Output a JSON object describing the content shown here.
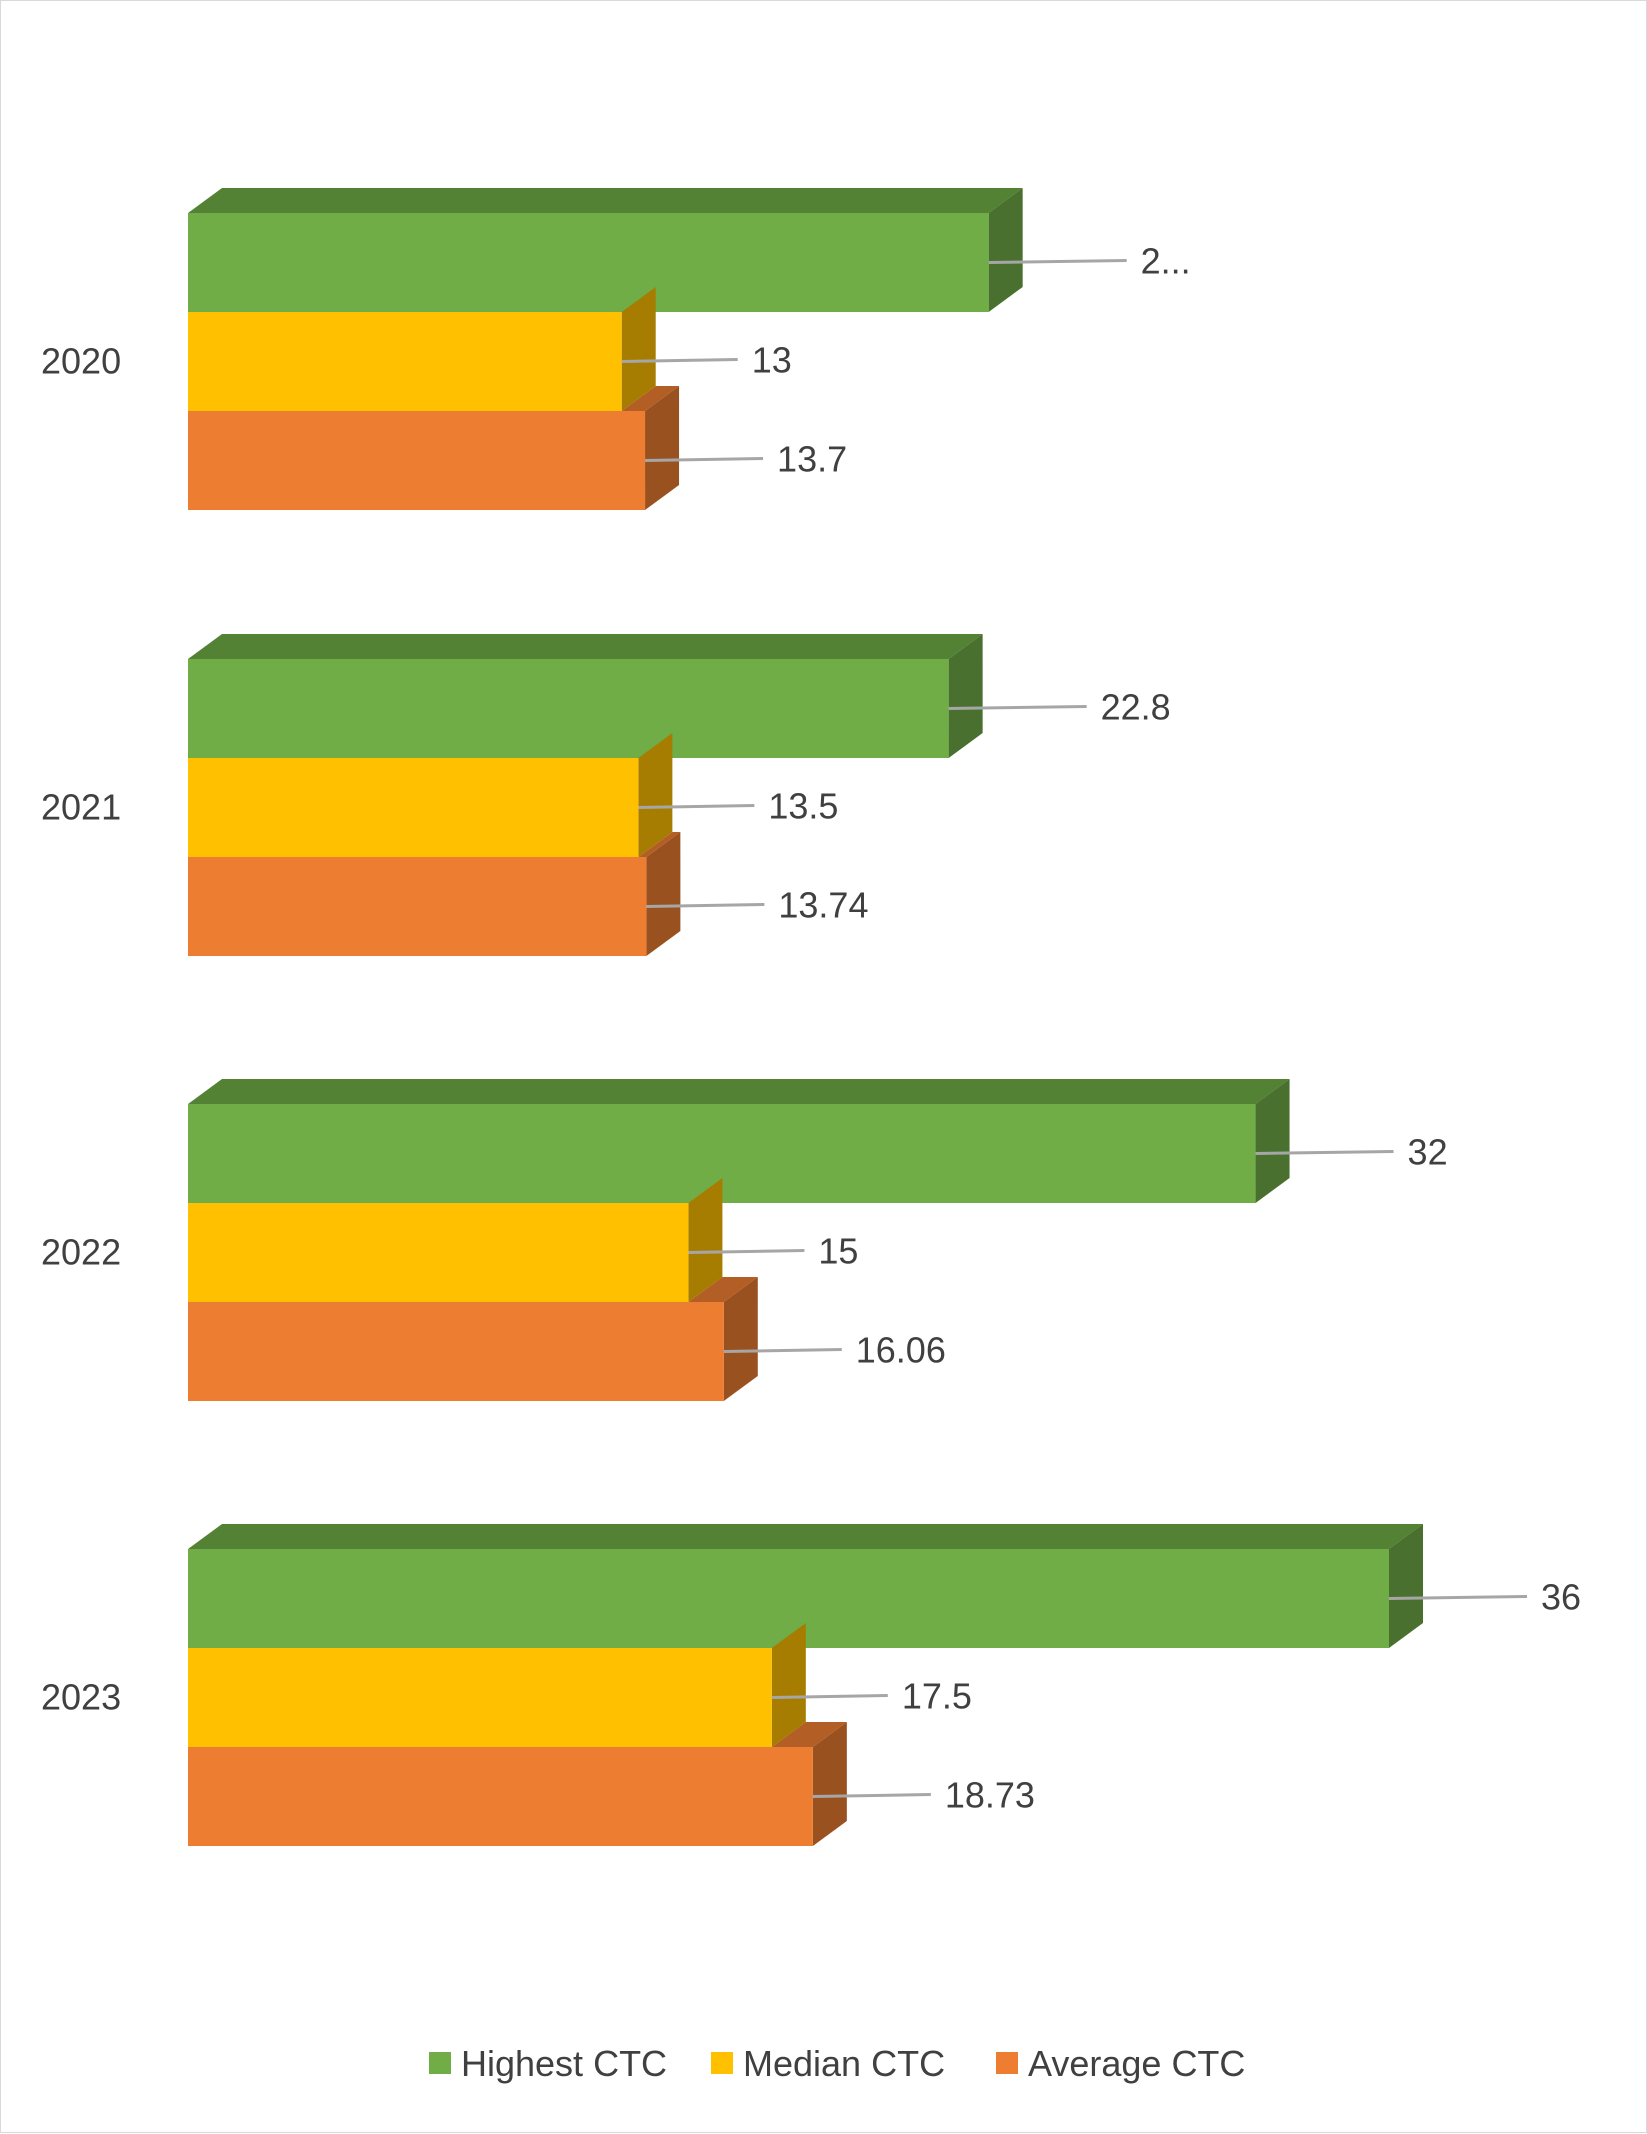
{
  "chart_data": {
    "type": "bar",
    "orientation": "horizontal",
    "style": "3d",
    "categories": [
      "2020",
      "2021",
      "2022",
      "2023"
    ],
    "series": [
      {
        "name": "Highest CTC",
        "color": "#70AD47",
        "values": [
          24,
          22.8,
          32,
          36
        ],
        "labels": [
          "2...",
          "22.8",
          "32",
          "36"
        ]
      },
      {
        "name": "Median CTC",
        "color": "#FFC000",
        "values": [
          13,
          13.5,
          15,
          17.5
        ],
        "labels": [
          "13",
          "13.5",
          "15",
          "17.5"
        ]
      },
      {
        "name": "Average CTC",
        "color": "#ED7D31",
        "values": [
          13.7,
          13.74,
          16.06,
          18.73
        ],
        "labels": [
          "13.7",
          "13.74",
          "16.06",
          "18.73"
        ]
      }
    ],
    "xlim": [
      0,
      36
    ],
    "grid": false,
    "legend": "bottom"
  }
}
